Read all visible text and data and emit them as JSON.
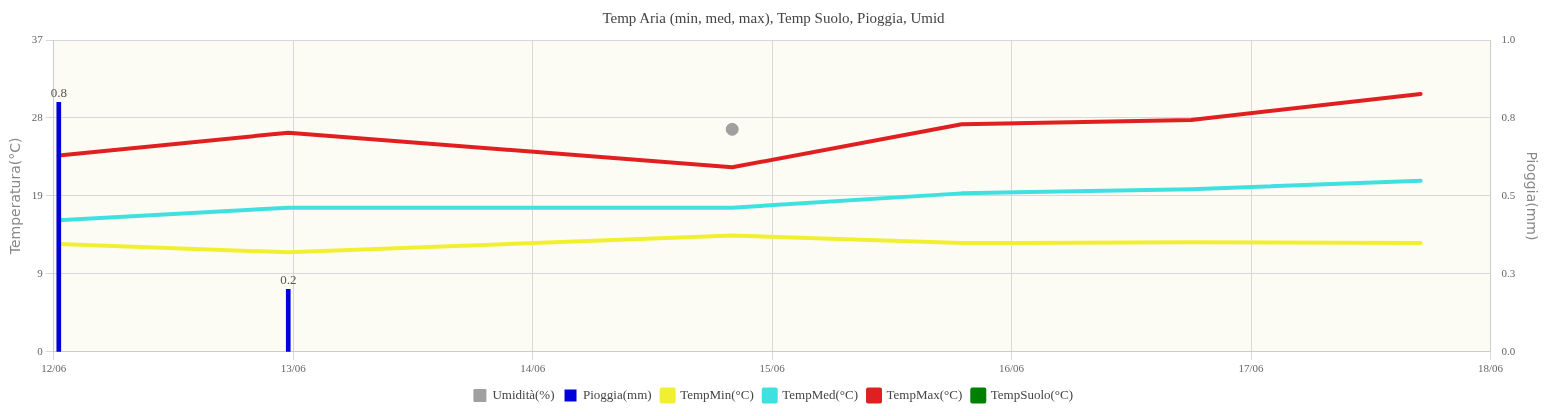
{
  "chart_data": {
    "type": "line",
    "title": "Temp Aria (min, med, max), Temp Suolo, Pioggia, Umid",
    "ylabel": "Temperatura(°C)",
    "y2label": "Pioggia(mm)",
    "x": [
      "--06-12T00:30",
      "--06-12T23:30",
      "--06-14T20:00",
      "--06-15T19:00",
      "--06-16T18:00",
      "--06-17T17:00"
    ],
    "xlim": [
      "--06-12",
      "--06-18"
    ],
    "xticks": [
      {
        "value": "--06-12",
        "label": "12/06"
      },
      {
        "value": "--06-13",
        "label": "13/06"
      },
      {
        "value": "--06-14",
        "label": "14/06"
      },
      {
        "value": "--06-15",
        "label": "15/06"
      },
      {
        "value": "--06-16",
        "label": "16/06"
      },
      {
        "value": "--06-17",
        "label": "17/06"
      },
      {
        "value": "--06-18",
        "label": "18/06"
      }
    ],
    "ylim": [
      0,
      37
    ],
    "yticks": [
      0,
      {
        "value": 9.25,
        "label": "9"
      },
      {
        "value": 18.5,
        "label": "19"
      },
      {
        "value": 27.75,
        "label": "28"
      },
      37
    ],
    "y2lim": [
      0,
      1
    ],
    "y2ticks": [
      {
        "value": 0,
        "label": "0.0"
      },
      {
        "value": 0.25,
        "label": "0.3"
      },
      {
        "value": 0.5,
        "label": "0.5"
      },
      {
        "value": 0.75,
        "label": "0.8"
      },
      {
        "value": 1,
        "label": "1.0"
      }
    ],
    "grid": true,
    "legend": "bottom",
    "marker": "none",
    "series": [
      {
        "name": "Umidità(%)",
        "type": "scatter",
        "marker": "circle",
        "color": "#a0a0a0",
        "x": [
          "--06-14T20:00"
        ],
        "values": [
          26.4
        ]
      },
      {
        "name": "Pioggia(mm)",
        "type": "bar",
        "axis": "y2",
        "color": "#0000dd",
        "x": [
          "--06-12T00:30",
          "--06-12T23:30"
        ],
        "values": [
          0.8,
          0.2
        ],
        "value_labels": [
          "0.8",
          "0.2"
        ]
      },
      {
        "name": "TempMin(°C)",
        "color": "#f0f030",
        "values": [
          12.8,
          11.8,
          13.8,
          12.9,
          13.0,
          12.9
        ]
      },
      {
        "name": "TempMed(°C)",
        "color": "#40e0e0",
        "values": [
          15.6,
          17.1,
          17.1,
          18.8,
          19.3,
          20.3
        ]
      },
      {
        "name": "TempMax(°C)",
        "color": "#e02020",
        "values": [
          23.3,
          26.0,
          21.9,
          27.0,
          27.5,
          30.6
        ]
      },
      {
        "name": "TempSuolo(°C)",
        "color": "#008000",
        "values": [
          null,
          null,
          null,
          null,
          null,
          null
        ]
      }
    ]
  }
}
